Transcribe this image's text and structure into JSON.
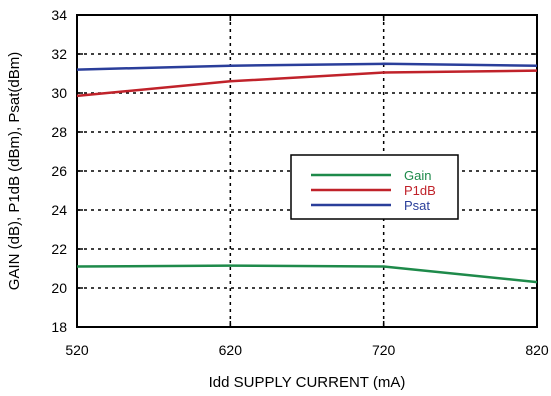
{
  "chart_data": {
    "type": "line",
    "title": "",
    "xlabel": "Idd SUPPLY CURRENT (mA)",
    "ylabel": "GAIN (dB), P1dB (dBm), Psat(dBm)",
    "xlim": [
      520,
      820
    ],
    "ylim": [
      18,
      34
    ],
    "x_ticks": [
      520,
      620,
      720,
      820
    ],
    "y_ticks": [
      18,
      20,
      22,
      24,
      26,
      28,
      30,
      32,
      34
    ],
    "grid": true,
    "legend_position": "center-right",
    "x": [
      520,
      620,
      720,
      820
    ],
    "series": [
      {
        "name": "Gain",
        "color": "#1e8a4a",
        "values": [
          21.1,
          21.15,
          21.1,
          20.3
        ]
      },
      {
        "name": "P1dB",
        "color": "#c0222a",
        "values": [
          29.85,
          30.6,
          31.05,
          31.15
        ]
      },
      {
        "name": "Psat",
        "color": "#2a3e9a",
        "values": [
          31.2,
          31.4,
          31.5,
          31.4
        ]
      }
    ]
  }
}
